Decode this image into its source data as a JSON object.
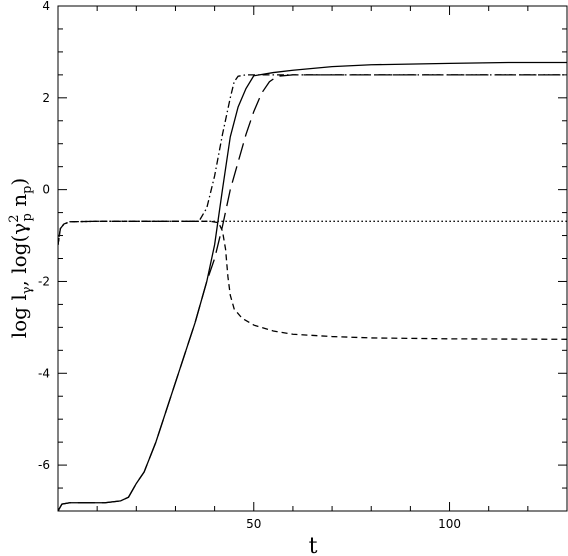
{
  "chart_data": {
    "type": "line",
    "xlabel": "t",
    "ylabel_parts": {
      "main": "log l",
      "sub1": "γ",
      "mid": ", log(γ",
      "sup": "2",
      "sub2": "p",
      "mid2": " n",
      "sub3": "p",
      "end": ")"
    },
    "xlim": [
      0,
      130
    ],
    "ylim": [
      -7,
      4
    ],
    "x_ticks": [
      50,
      100
    ],
    "y_ticks": [
      -6,
      -4,
      -2,
      0,
      2,
      4
    ],
    "grid": false,
    "legend": "none",
    "series": [
      {
        "style": "solid",
        "points": [
          [
            0,
            -7
          ],
          [
            1,
            -6.85
          ],
          [
            3,
            -6.82
          ],
          [
            8,
            -6.82
          ],
          [
            12,
            -6.82
          ],
          [
            16,
            -6.78
          ],
          [
            18,
            -6.7
          ],
          [
            20,
            -6.4
          ],
          [
            22,
            -6.15
          ],
          [
            25,
            -5.5
          ],
          [
            30,
            -4.2
          ],
          [
            35,
            -2.9
          ],
          [
            38,
            -2.0
          ],
          [
            40,
            -1.2
          ],
          [
            42,
            0.0
          ],
          [
            44,
            1.15
          ],
          [
            46,
            1.8
          ],
          [
            48,
            2.2
          ],
          [
            50,
            2.48
          ],
          [
            55,
            2.55
          ],
          [
            60,
            2.6
          ],
          [
            70,
            2.68
          ],
          [
            80,
            2.72
          ],
          [
            100,
            2.75
          ],
          [
            115,
            2.77
          ],
          [
            130,
            2.77
          ]
        ]
      },
      {
        "style": "long-dash",
        "points": [
          [
            0,
            -7
          ],
          [
            1,
            -6.85
          ],
          [
            3,
            -6.82
          ],
          [
            8,
            -6.82
          ],
          [
            12,
            -6.82
          ],
          [
            16,
            -6.78
          ],
          [
            18,
            -6.7
          ],
          [
            20,
            -6.4
          ],
          [
            22,
            -6.15
          ],
          [
            25,
            -5.5
          ],
          [
            30,
            -4.2
          ],
          [
            35,
            -2.9
          ],
          [
            38,
            -2.0
          ],
          [
            40,
            -1.5
          ],
          [
            42,
            -0.8
          ],
          [
            44,
            0.0
          ],
          [
            46,
            0.6
          ],
          [
            48,
            1.2
          ],
          [
            50,
            1.7
          ],
          [
            52,
            2.1
          ],
          [
            54,
            2.35
          ],
          [
            56,
            2.47
          ],
          [
            60,
            2.5
          ],
          [
            80,
            2.5
          ],
          [
            130,
            2.5
          ]
        ]
      },
      {
        "style": "dash-dot",
        "points": [
          [
            0,
            -1.2
          ],
          [
            0.6,
            -0.85
          ],
          [
            1.5,
            -0.75
          ],
          [
            3,
            -0.7
          ],
          [
            10,
            -0.69
          ],
          [
            25,
            -0.69
          ],
          [
            36,
            -0.69
          ],
          [
            38,
            -0.4
          ],
          [
            40,
            0.3
          ],
          [
            42,
            1.2
          ],
          [
            44,
            2.0
          ],
          [
            45,
            2.35
          ],
          [
            46,
            2.47
          ],
          [
            48,
            2.5
          ],
          [
            60,
            2.5
          ],
          [
            130,
            2.5
          ]
        ]
      },
      {
        "style": "short-dash",
        "points": [
          [
            0,
            -1.2
          ],
          [
            0.6,
            -0.85
          ],
          [
            1.5,
            -0.75
          ],
          [
            3,
            -0.7
          ],
          [
            10,
            -0.69
          ],
          [
            30,
            -0.69
          ],
          [
            39,
            -0.69
          ],
          [
            41,
            -0.72
          ],
          [
            42,
            -0.9
          ],
          [
            42.8,
            -1.3
          ],
          [
            43.4,
            -1.9
          ],
          [
            44,
            -2.3
          ],
          [
            45,
            -2.6
          ],
          [
            47,
            -2.8
          ],
          [
            50,
            -2.95
          ],
          [
            55,
            -3.08
          ],
          [
            60,
            -3.15
          ],
          [
            70,
            -3.2
          ],
          [
            80,
            -3.23
          ],
          [
            100,
            -3.25
          ],
          [
            130,
            -3.26
          ]
        ]
      },
      {
        "style": "dotted",
        "points": [
          [
            0,
            -1.2
          ],
          [
            0.6,
            -0.85
          ],
          [
            1.5,
            -0.75
          ],
          [
            3,
            -0.7
          ],
          [
            10,
            -0.69
          ],
          [
            50,
            -0.69
          ],
          [
            90,
            -0.69
          ],
          [
            130,
            -0.69
          ]
        ]
      }
    ]
  }
}
